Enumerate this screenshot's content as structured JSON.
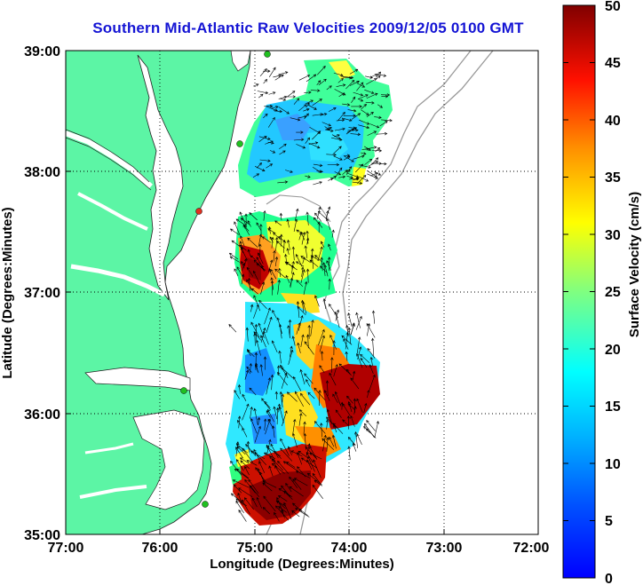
{
  "title": "Southern Mid-Atlantic Raw Velocities 2009/12/05 0100 GMT",
  "axes": {
    "xlabel": "Longitude (Degrees:Minutes)",
    "ylabel": "Latitude (Degrees:Minutes)",
    "lon_ticks": [
      "77:00",
      "76:00",
      "75:00",
      "74:00",
      "73:00",
      "72:00"
    ],
    "lat_ticks": [
      "39:00",
      "38:00",
      "37:00",
      "36:00",
      "35:00"
    ],
    "lon_range_deg_west": [
      77,
      72
    ],
    "lat_range_deg_north": [
      35,
      39
    ],
    "grid": "dotted"
  },
  "colorbar": {
    "label": "Surface Velocity (cm/s)",
    "ticks": [
      "0",
      "5",
      "10",
      "15",
      "20",
      "25",
      "30",
      "35",
      "40",
      "45",
      "50"
    ],
    "min": 0,
    "max": 50,
    "colormap": "jet"
  },
  "colors": {
    "land": "#5cf5a5",
    "title": "#1414d4",
    "station": "#20c020",
    "station_alt": "#e03020"
  }
}
